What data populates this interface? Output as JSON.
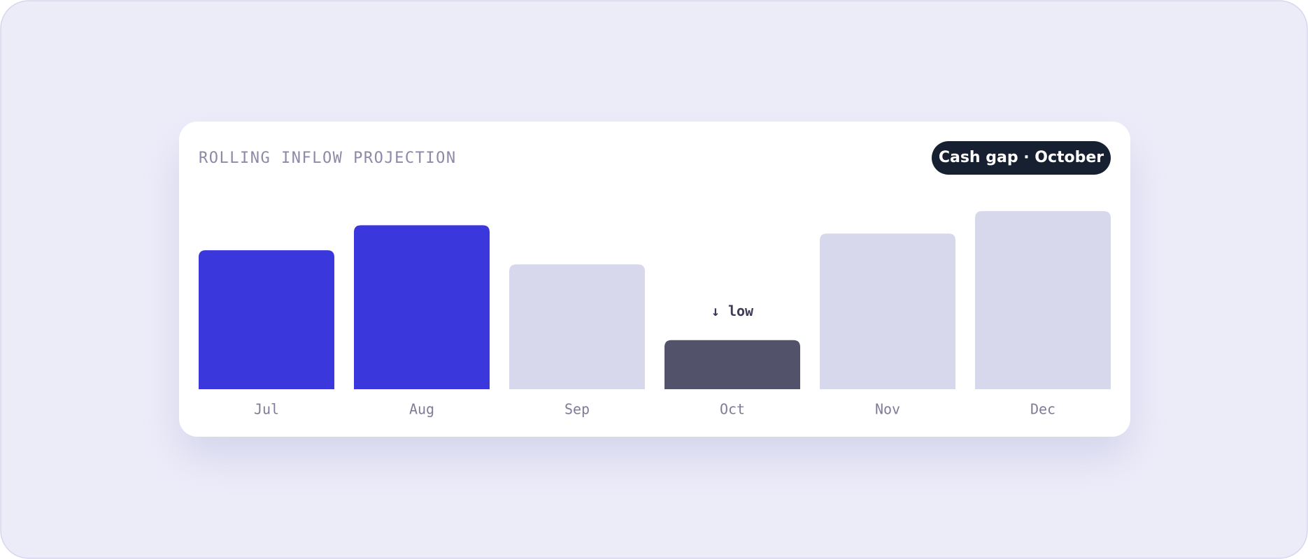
{
  "chart_data": {
    "type": "bar",
    "title": "ROLLING INFLOW PROJECTION",
    "badge": "Cash gap · October",
    "categories": [
      "Jul",
      "Aug",
      "Sep",
      "Oct",
      "Nov",
      "Dec"
    ],
    "values": [
      167,
      197,
      150,
      59,
      187,
      214
    ],
    "colors": [
      "#3a37dc",
      "#3a37dc",
      "#d8d8ec",
      "#52526a",
      "#d8d8ec",
      "#d8d8ec"
    ],
    "ylim": [
      0,
      220
    ],
    "annotations": [
      {
        "text": "↓ low",
        "category": "Oct"
      }
    ]
  }
}
